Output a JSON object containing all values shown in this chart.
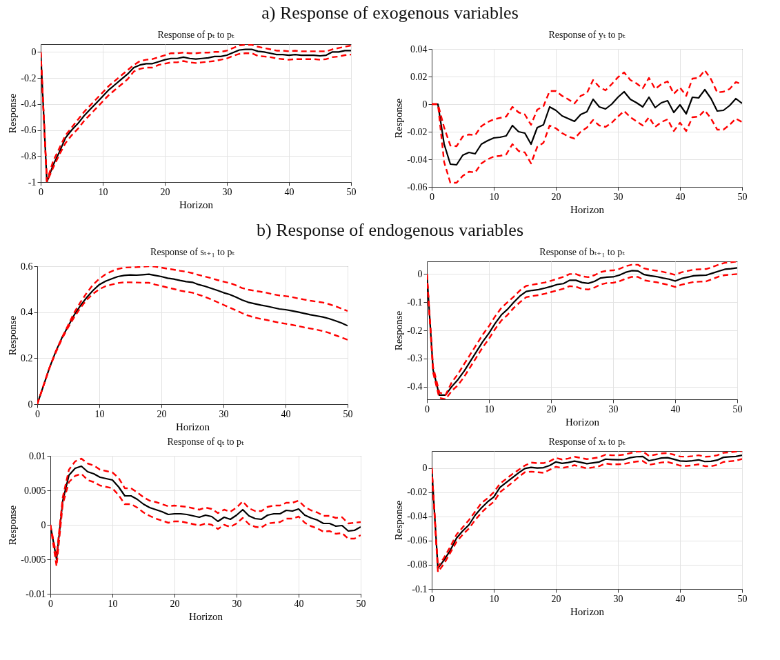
{
  "chart_data": [
    {
      "type": "line",
      "annotations": [
        "a) Response of exogenous variables"
      ],
      "title": "Response of pₜ to pₜ",
      "xlabel": "Horizon",
      "ylabel": "Response",
      "xlim": [
        0,
        50
      ],
      "xticks": [
        0,
        10,
        20,
        30,
        40,
        50
      ],
      "ylim": [
        -1,
        0.06
      ],
      "yticks": [
        -1,
        -0.8,
        -0.6,
        -0.4,
        -0.2,
        0
      ],
      "grid": true,
      "x": [
        0,
        1,
        2,
        3,
        4,
        5,
        6,
        7,
        8,
        9,
        10,
        11,
        12,
        13,
        14,
        15,
        16,
        17,
        18,
        19,
        20,
        21,
        22,
        23,
        24,
        25,
        26,
        27,
        28,
        29,
        30,
        31,
        32,
        33,
        34,
        35,
        36,
        37,
        38,
        39,
        40,
        41,
        42,
        43,
        44,
        45,
        46,
        47,
        48,
        49,
        50
      ],
      "series": [
        {
          "color": "#000000",
          "line_style": "solid",
          "values": [
            0,
            -1,
            -0.87,
            -0.77,
            -0.66,
            -0.6,
            -0.55,
            -0.49,
            -0.44,
            -0.39,
            -0.34,
            -0.29,
            -0.25,
            -0.21,
            -0.17,
            -0.12,
            -0.1,
            -0.09,
            -0.09,
            -0.075,
            -0.06,
            -0.05,
            -0.05,
            -0.04,
            -0.05,
            -0.055,
            -0.05,
            -0.045,
            -0.035,
            -0.035,
            -0.025,
            -0.005,
            0.015,
            0.02,
            0.02,
            0.005,
            0,
            -0.01,
            -0.02,
            -0.02,
            -0.025,
            -0.02,
            -0.025,
            -0.025,
            -0.025,
            -0.03,
            -0.025,
            0,
            0,
            0.01,
            0.01
          ]
        },
        {
          "color": "#ff0000",
          "line_style": "dashed",
          "values": [
            0,
            -0.99,
            -0.84,
            -0.74,
            -0.64,
            -0.58,
            -0.52,
            -0.46,
            -0.41,
            -0.36,
            -0.31,
            -0.26,
            -0.22,
            -0.18,
            -0.14,
            -0.1,
            -0.07,
            -0.06,
            -0.055,
            -0.04,
            -0.025,
            -0.01,
            -0.01,
            -0.005,
            -0.01,
            -0.01,
            -0.005,
            -0.005,
            0,
            0,
            0.01,
            0.03,
            0.05,
            0.055,
            0.055,
            0.04,
            0.03,
            0.02,
            0.01,
            0.01,
            0.005,
            0.01,
            0.005,
            0.005,
            0.005,
            0.005,
            0.005,
            0.02,
            0.03,
            0.04,
            0.05
          ]
        },
        {
          "color": "#ff0000",
          "line_style": "dashed",
          "values": [
            0,
            -1,
            -0.89,
            -0.79,
            -0.7,
            -0.64,
            -0.59,
            -0.53,
            -0.48,
            -0.43,
            -0.38,
            -0.33,
            -0.29,
            -0.25,
            -0.21,
            -0.15,
            -0.13,
            -0.12,
            -0.12,
            -0.1,
            -0.09,
            -0.08,
            -0.08,
            -0.07,
            -0.08,
            -0.085,
            -0.08,
            -0.075,
            -0.07,
            -0.06,
            -0.05,
            -0.03,
            -0.015,
            -0.01,
            -0.01,
            -0.03,
            -0.035,
            -0.04,
            -0.05,
            -0.055,
            -0.06,
            -0.055,
            -0.055,
            -0.055,
            -0.055,
            -0.06,
            -0.055,
            -0.04,
            -0.035,
            -0.025,
            -0.02
          ]
        }
      ]
    },
    {
      "type": "line",
      "title": "Response of yₜ to pₜ",
      "xlabel": "Horizon",
      "ylabel": "Response",
      "xlim": [
        0,
        50
      ],
      "xticks": [
        0,
        10,
        20,
        30,
        40,
        50
      ],
      "ylim": [
        -0.06,
        0.04
      ],
      "yticks": [
        -0.06,
        -0.04,
        -0.02,
        0,
        0.02,
        0.04
      ],
      "grid": true,
      "x": [
        0,
        1,
        2,
        3,
        4,
        5,
        6,
        7,
        8,
        9,
        10,
        11,
        12,
        13,
        14,
        15,
        16,
        17,
        18,
        19,
        20,
        21,
        22,
        23,
        24,
        25,
        26,
        27,
        28,
        29,
        30,
        31,
        32,
        33,
        34,
        35,
        36,
        37,
        38,
        39,
        40,
        41,
        42,
        43,
        44,
        45,
        46,
        47,
        48,
        49,
        50
      ],
      "series": [
        {
          "color": "#000000",
          "line_style": "solid",
          "values": [
            0,
            0,
            -0.029,
            -0.0435,
            -0.044,
            -0.037,
            -0.035,
            -0.036,
            -0.029,
            -0.0265,
            -0.0245,
            -0.024,
            -0.023,
            -0.0155,
            -0.02,
            -0.021,
            -0.029,
            -0.017,
            -0.015,
            -0.002,
            -0.0045,
            -0.0085,
            -0.0105,
            -0.0125,
            -0.0075,
            -0.0055,
            0.0035,
            -0.002,
            -0.0035,
            0,
            0.005,
            0.009,
            0.0035,
            0.001,
            -0.002,
            0.005,
            -0.0025,
            0.001,
            0.0025,
            -0.006,
            -0.0005,
            -0.007,
            0.005,
            0.0045,
            0.0105,
            0.004,
            -0.005,
            -0.0045,
            -0.001,
            0.004,
            0.0005
          ]
        },
        {
          "color": "#ff0000",
          "line_style": "dashed",
          "values": [
            0,
            0,
            -0.017,
            -0.03,
            -0.0305,
            -0.0235,
            -0.022,
            -0.0225,
            -0.016,
            -0.013,
            -0.011,
            -0.01,
            -0.009,
            -0.002,
            -0.006,
            -0.0075,
            -0.015,
            -0.004,
            -0.0015,
            0.0095,
            0.0095,
            0.006,
            0.0035,
            0.0005,
            0.006,
            0.008,
            0.0175,
            0.0125,
            0.01,
            0.0145,
            0.0195,
            0.023,
            0.0175,
            0.015,
            0.0115,
            0.019,
            0.011,
            0.0145,
            0.0165,
            0.0075,
            0.012,
            0.006,
            0.0185,
            0.019,
            0.0245,
            0.018,
            0.0085,
            0.009,
            0.011,
            0.016,
            0.0145
          ]
        },
        {
          "color": "#ff0000",
          "line_style": "dashed",
          "values": [
            0,
            0,
            -0.042,
            -0.057,
            -0.057,
            -0.052,
            -0.049,
            -0.0495,
            -0.043,
            -0.04,
            -0.038,
            -0.0375,
            -0.0365,
            -0.029,
            -0.034,
            -0.035,
            -0.043,
            -0.031,
            -0.028,
            -0.0155,
            -0.0175,
            -0.021,
            -0.0235,
            -0.025,
            -0.02,
            -0.017,
            -0.0115,
            -0.0155,
            -0.0165,
            -0.0135,
            -0.009,
            -0.005,
            -0.0095,
            -0.0125,
            -0.0155,
            -0.0095,
            -0.0165,
            -0.013,
            -0.011,
            -0.0195,
            -0.0135,
            -0.0195,
            -0.0095,
            -0.009,
            -0.0045,
            -0.0105,
            -0.0185,
            -0.0185,
            -0.015,
            -0.0105,
            -0.013
          ]
        }
      ]
    },
    {
      "type": "line",
      "annotations": [
        "b) Response of endogenous variables"
      ],
      "title": "Response of sₜ₊₁ to pₜ",
      "xlabel": "Horizon",
      "ylabel": "Response",
      "xlim": [
        0,
        50
      ],
      "xticks": [
        0,
        10,
        20,
        30,
        40,
        50
      ],
      "ylim": [
        0,
        0.6
      ],
      "yticks": [
        0,
        0.2,
        0.4,
        0.6
      ],
      "grid": true,
      "x": [
        0,
        1,
        2,
        3,
        4,
        5,
        6,
        7,
        8,
        9,
        10,
        11,
        12,
        13,
        14,
        15,
        16,
        17,
        18,
        19,
        20,
        21,
        22,
        23,
        24,
        25,
        26,
        27,
        28,
        29,
        30,
        31,
        32,
        33,
        34,
        35,
        36,
        37,
        38,
        39,
        40,
        41,
        42,
        43,
        44,
        45,
        46,
        47,
        48,
        49,
        50
      ],
      "series": [
        {
          "color": "#000000",
          "line_style": "solid",
          "values": [
            0,
            0.08,
            0.16,
            0.23,
            0.29,
            0.34,
            0.39,
            0.43,
            0.465,
            0.495,
            0.52,
            0.535,
            0.545,
            0.555,
            0.56,
            0.562,
            0.561,
            0.563,
            0.565,
            0.56,
            0.555,
            0.548,
            0.544,
            0.538,
            0.533,
            0.53,
            0.52,
            0.513,
            0.504,
            0.495,
            0.485,
            0.477,
            0.466,
            0.453,
            0.443,
            0.437,
            0.431,
            0.426,
            0.42,
            0.414,
            0.411,
            0.406,
            0.401,
            0.395,
            0.389,
            0.384,
            0.379,
            0.372,
            0.363,
            0.353,
            0.341
          ]
        },
        {
          "color": "#ff0000",
          "line_style": "dashed",
          "values": [
            0,
            0.08,
            0.16,
            0.23,
            0.29,
            0.345,
            0.4,
            0.445,
            0.485,
            0.52,
            0.545,
            0.565,
            0.578,
            0.588,
            0.594,
            0.595,
            0.596,
            0.598,
            0.6,
            0.598,
            0.594,
            0.589,
            0.585,
            0.58,
            0.576,
            0.57,
            0.562,
            0.555,
            0.548,
            0.54,
            0.533,
            0.527,
            0.517,
            0.505,
            0.498,
            0.493,
            0.489,
            0.484,
            0.478,
            0.473,
            0.47,
            0.466,
            0.46,
            0.455,
            0.45,
            0.446,
            0.442,
            0.435,
            0.426,
            0.416,
            0.405
          ]
        },
        {
          "color": "#ff0000",
          "line_style": "dashed",
          "values": [
            0,
            0.08,
            0.16,
            0.225,
            0.285,
            0.335,
            0.38,
            0.42,
            0.455,
            0.48,
            0.5,
            0.513,
            0.52,
            0.527,
            0.53,
            0.53,
            0.529,
            0.528,
            0.528,
            0.52,
            0.514,
            0.507,
            0.501,
            0.494,
            0.489,
            0.485,
            0.476,
            0.467,
            0.456,
            0.444,
            0.432,
            0.42,
            0.408,
            0.396,
            0.385,
            0.377,
            0.371,
            0.366,
            0.36,
            0.354,
            0.35,
            0.345,
            0.34,
            0.334,
            0.329,
            0.324,
            0.318,
            0.31,
            0.3,
            0.29,
            0.28
          ]
        }
      ]
    },
    {
      "type": "line",
      "title": "Response of bₜ₊₁ to pₜ",
      "xlabel": "Horizon",
      "ylabel": "Response",
      "xlim": [
        0,
        50
      ],
      "xticks": [
        0,
        10,
        20,
        30,
        40,
        50
      ],
      "ylim": [
        -0.445,
        0.045
      ],
      "yticks": [
        -0.4,
        -0.3,
        -0.2,
        -0.1,
        0
      ],
      "grid": true,
      "x": [
        0,
        1,
        2,
        3,
        4,
        5,
        6,
        7,
        8,
        9,
        10,
        11,
        12,
        13,
        14,
        15,
        16,
        17,
        18,
        19,
        20,
        21,
        22,
        23,
        24,
        25,
        26,
        27,
        28,
        29,
        30,
        31,
        32,
        33,
        34,
        35,
        36,
        37,
        38,
        39,
        40,
        41,
        42,
        43,
        44,
        45,
        46,
        47,
        48,
        49,
        50
      ],
      "series": [
        {
          "color": "#000000",
          "line_style": "solid",
          "values": [
            0,
            -0.34,
            -0.43,
            -0.43,
            -0.4,
            -0.375,
            -0.345,
            -0.31,
            -0.275,
            -0.24,
            -0.21,
            -0.175,
            -0.145,
            -0.125,
            -0.1,
            -0.078,
            -0.062,
            -0.058,
            -0.055,
            -0.05,
            -0.044,
            -0.037,
            -0.034,
            -0.022,
            -0.022,
            -0.03,
            -0.033,
            -0.026,
            -0.014,
            -0.011,
            -0.01,
            -0.004,
            0.006,
            0.012,
            0.011,
            -0.002,
            -0.006,
            -0.009,
            -0.014,
            -0.018,
            -0.025,
            -0.016,
            -0.011,
            -0.006,
            -0.005,
            -0.004,
            0.003,
            0.01,
            0.017,
            0.019,
            0.022
          ]
        },
        {
          "color": "#ff0000",
          "line_style": "dashed",
          "values": [
            0,
            -0.33,
            -0.42,
            -0.43,
            -0.385,
            -0.355,
            -0.32,
            -0.285,
            -0.25,
            -0.215,
            -0.185,
            -0.15,
            -0.12,
            -0.1,
            -0.08,
            -0.058,
            -0.042,
            -0.038,
            -0.034,
            -0.03,
            -0.024,
            -0.017,
            -0.01,
            0,
            0,
            -0.008,
            -0.011,
            -0.004,
            0.007,
            0.012,
            0.013,
            0.018,
            0.028,
            0.033,
            0.033,
            0.02,
            0.015,
            0.012,
            0.008,
            0.003,
            -0.003,
            0.006,
            0.011,
            0.016,
            0.017,
            0.018,
            0.025,
            0.033,
            0.04,
            0.042,
            0.045
          ]
        },
        {
          "color": "#ff0000",
          "line_style": "dashed",
          "values": [
            0,
            -0.35,
            -0.44,
            -0.445,
            -0.415,
            -0.395,
            -0.365,
            -0.33,
            -0.295,
            -0.26,
            -0.23,
            -0.195,
            -0.165,
            -0.145,
            -0.12,
            -0.1,
            -0.082,
            -0.078,
            -0.075,
            -0.07,
            -0.064,
            -0.058,
            -0.052,
            -0.043,
            -0.045,
            -0.053,
            -0.055,
            -0.048,
            -0.037,
            -0.032,
            -0.031,
            -0.026,
            -0.017,
            -0.01,
            -0.01,
            -0.022,
            -0.026,
            -0.029,
            -0.034,
            -0.039,
            -0.046,
            -0.038,
            -0.033,
            -0.028,
            -0.027,
            -0.026,
            -0.018,
            -0.009,
            -0.004,
            -0.002,
            0
          ]
        }
      ]
    },
    {
      "type": "line",
      "title": "Response of qₜ to pₜ",
      "xlabel": "Horizon",
      "ylabel": "Response",
      "xlim": [
        0,
        50
      ],
      "xticks": [
        0,
        10,
        20,
        30,
        40,
        50
      ],
      "ylim": [
        -0.01,
        0.01
      ],
      "yticks": [
        -0.01,
        -0.005,
        0,
        0.005,
        0.01
      ],
      "grid": true,
      "x": [
        0,
        1,
        2,
        3,
        4,
        5,
        6,
        7,
        8,
        9,
        10,
        11,
        12,
        13,
        14,
        15,
        16,
        17,
        18,
        19,
        20,
        21,
        22,
        23,
        24,
        25,
        26,
        27,
        28,
        29,
        30,
        31,
        32,
        33,
        34,
        35,
        36,
        37,
        38,
        39,
        40,
        41,
        42,
        43,
        44,
        45,
        46,
        47,
        48,
        49,
        50
      ],
      "series": [
        {
          "color": "#000000",
          "line_style": "solid",
          "values": [
            0,
            -0.005,
            0.0035,
            0.0072,
            0.0082,
            0.0085,
            0.0077,
            0.0074,
            0.0069,
            0.0067,
            0.0065,
            0.0055,
            0.0042,
            0.0042,
            0.0037,
            0.003,
            0.0025,
            0.0022,
            0.0019,
            0.0015,
            0.0016,
            0.0016,
            0.0015,
            0.0013,
            0.0011,
            0.0014,
            0.0012,
            0.0005,
            0.0011,
            0.0008,
            0.0014,
            0.0022,
            0.0013,
            0.0009,
            0.0008,
            0.0014,
            0.0016,
            0.0016,
            0.0021,
            0.002,
            0.0023,
            0.0014,
            0.001,
            0.0007,
            0.0002,
            0.0002,
            -0.0002,
            -0.0001,
            -0.0009,
            -0.0008,
            -0.0003
          ]
        },
        {
          "color": "#ff0000",
          "line_style": "dashed",
          "values": [
            0,
            -0.0045,
            0.004,
            0.008,
            0.0092,
            0.0096,
            0.0089,
            0.0086,
            0.008,
            0.0078,
            0.0076,
            0.0068,
            0.0053,
            0.0053,
            0.0047,
            0.004,
            0.0035,
            0.0033,
            0.003,
            0.0027,
            0.0028,
            0.0027,
            0.0026,
            0.0024,
            0.0022,
            0.0025,
            0.0023,
            0.0017,
            0.0022,
            0.0019,
            0.0025,
            0.0034,
            0.0024,
            0.002,
            0.002,
            0.0026,
            0.0028,
            0.0028,
            0.0032,
            0.0032,
            0.0035,
            0.0026,
            0.0021,
            0.0018,
            0.0013,
            0.0013,
            0.001,
            0.0011,
            0.0002,
            0.0003,
            0.0004
          ]
        },
        {
          "color": "#ff0000",
          "line_style": "dashed",
          "values": [
            0,
            -0.006,
            0.003,
            0.0062,
            0.0071,
            0.0074,
            0.0065,
            0.0062,
            0.0057,
            0.0055,
            0.0053,
            0.0043,
            0.003,
            0.003,
            0.0025,
            0.0018,
            0.0013,
            0.0009,
            0.0006,
            0.0003,
            0.0005,
            0.0005,
            0.0003,
            0.0001,
            -0.0001,
            0.0002,
            0,
            -0.0006,
            0,
            -0.0003,
            0.0002,
            0.001,
            0.0001,
            -0.0003,
            -0.0004,
            0.0002,
            0.0003,
            0.0004,
            0.0009,
            0.0009,
            0.0012,
            0.0003,
            -0.0002,
            -0.0005,
            -0.001,
            -0.0009,
            -0.0013,
            -0.0012,
            -0.002,
            -0.002,
            -0.0015
          ]
        }
      ]
    },
    {
      "type": "line",
      "title": "Response of xₜ to pₜ",
      "xlabel": "Horizon",
      "ylabel": "Response",
      "xlim": [
        0,
        50
      ],
      "xticks": [
        0,
        10,
        20,
        30,
        40,
        50
      ],
      "ylim": [
        -0.1,
        0.014
      ],
      "yticks": [
        -0.1,
        -0.08,
        -0.06,
        -0.04,
        -0.02,
        0
      ],
      "grid": true,
      "x": [
        0,
        1,
        2,
        3,
        4,
        5,
        6,
        7,
        8,
        9,
        10,
        11,
        12,
        13,
        14,
        15,
        16,
        17,
        18,
        19,
        20,
        21,
        22,
        23,
        24,
        25,
        26,
        27,
        28,
        29,
        30,
        31,
        32,
        33,
        34,
        35,
        36,
        37,
        38,
        39,
        40,
        41,
        42,
        43,
        44,
        45,
        46,
        47,
        48,
        49,
        50
      ],
      "series": [
        {
          "color": "#000000",
          "line_style": "solid",
          "values": [
            0,
            -0.083,
            -0.076,
            -0.068,
            -0.058,
            -0.052,
            -0.047,
            -0.039,
            -0.033,
            -0.028,
            -0.024,
            -0.016,
            -0.012,
            -0.008,
            -0.004,
            -0.0005,
            0.0005,
            0,
            0.0003,
            0.002,
            0.005,
            0.0038,
            0.0045,
            0.0057,
            0.0047,
            0.0035,
            0.0042,
            0.005,
            0.0073,
            0.007,
            0.0068,
            0.007,
            0.0085,
            0.0093,
            0.0095,
            0.006,
            0.007,
            0.0082,
            0.0085,
            0.0072,
            0.0058,
            0.0055,
            0.006,
            0.0067,
            0.0053,
            0.0055,
            0.0065,
            0.0088,
            0.0092,
            0.0095,
            0.0105
          ]
        },
        {
          "color": "#ff0000",
          "line_style": "dashed",
          "values": [
            0,
            -0.082,
            -0.074,
            -0.065,
            -0.055,
            -0.049,
            -0.043,
            -0.036,
            -0.029,
            -0.025,
            -0.02,
            -0.013,
            -0.009,
            -0.005,
            -0.0015,
            0.002,
            0.0045,
            0.004,
            0.004,
            0.0055,
            0.0083,
            0.007,
            0.0078,
            0.0093,
            0.0083,
            0.0073,
            0.008,
            0.0088,
            0.011,
            0.0105,
            0.0105,
            0.011,
            0.0123,
            0.0135,
            0.0137,
            0.01,
            0.011,
            0.012,
            0.0123,
            0.011,
            0.0095,
            0.0093,
            0.0098,
            0.0105,
            0.0093,
            0.0095,
            0.0105,
            0.0125,
            0.013,
            0.0135,
            0.014
          ]
        },
        {
          "color": "#ff0000",
          "line_style": "dashed",
          "values": [
            0,
            -0.086,
            -0.079,
            -0.07,
            -0.061,
            -0.055,
            -0.05,
            -0.043,
            -0.037,
            -0.032,
            -0.028,
            -0.02,
            -0.016,
            -0.012,
            -0.0075,
            -0.0035,
            -0.003,
            -0.0035,
            -0.004,
            -0.0015,
            0.001,
            0,
            0.001,
            0.0023,
            0.001,
            -0.0003,
            0.0005,
            0.0015,
            0.0037,
            0.003,
            0.003,
            0.0033,
            0.0045,
            0.0053,
            0.0058,
            0.0025,
            0.0035,
            0.0045,
            0.005,
            0.0035,
            0.002,
            0.0017,
            0.0022,
            0.003,
            0.0015,
            0.0015,
            0.0025,
            0.005,
            0.0055,
            0.006,
            0.0075
          ]
        }
      ]
    }
  ]
}
